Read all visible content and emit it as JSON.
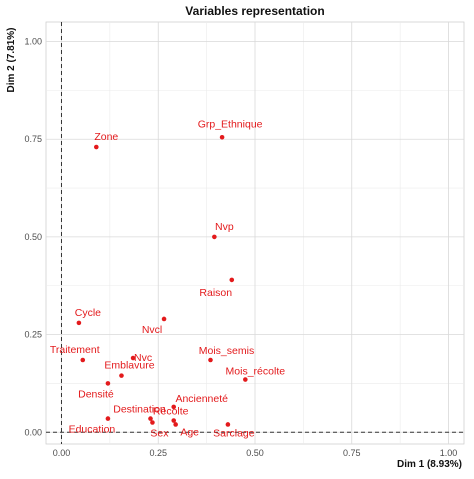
{
  "chart_data": {
    "type": "scatter",
    "title": "Variables representation",
    "xlabel": "Dim 1 (8.93%)",
    "ylabel": "Dim 2 (7.81%)",
    "xlim": [
      -0.04,
      1.04
    ],
    "ylim": [
      -0.03,
      1.05
    ],
    "x_ticks": [
      "0.00",
      "0.25",
      "0.50",
      "0.75",
      "1.00"
    ],
    "y_ticks": [
      "0.00",
      "0.25",
      "0.50",
      "0.75",
      "1.00"
    ],
    "grid": true,
    "reference_lines": "dashed lines at x = 0 and y = 0",
    "point_color": "#e31a1c",
    "label_color": "#e31a1c",
    "points": [
      {
        "label": "Grp_Ethnique",
        "x": 0.415,
        "y": 0.755
      },
      {
        "label": "Zone",
        "x": 0.09,
        "y": 0.73
      },
      {
        "label": "Nvp",
        "x": 0.395,
        "y": 0.5
      },
      {
        "label": "Raison",
        "x": 0.44,
        "y": 0.39
      },
      {
        "label": "Cycle",
        "x": 0.045,
        "y": 0.28
      },
      {
        "label": "Nvcl",
        "x": 0.265,
        "y": 0.29
      },
      {
        "label": "Traitement",
        "x": 0.055,
        "y": 0.185
      },
      {
        "label": "Nvc",
        "x": 0.185,
        "y": 0.19
      },
      {
        "label": "Mois_semis",
        "x": 0.385,
        "y": 0.185
      },
      {
        "label": "Emblavure",
        "x": 0.155,
        "y": 0.145
      },
      {
        "label": "Mois_récolte",
        "x": 0.475,
        "y": 0.135
      },
      {
        "label": "Densité",
        "x": 0.12,
        "y": 0.125
      },
      {
        "label": "Ancienneté",
        "x": 0.29,
        "y": 0.065
      },
      {
        "label": "Destination",
        "x": 0.23,
        "y": 0.035
      },
      {
        "label": "Récolte",
        "x": 0.29,
        "y": 0.03
      },
      {
        "label": "Education",
        "x": 0.12,
        "y": 0.035
      },
      {
        "label": "Sex",
        "x": 0.235,
        "y": 0.025
      },
      {
        "label": "Age",
        "x": 0.295,
        "y": 0.02
      },
      {
        "label": "Sarclage",
        "x": 0.43,
        "y": 0.02
      }
    ]
  }
}
